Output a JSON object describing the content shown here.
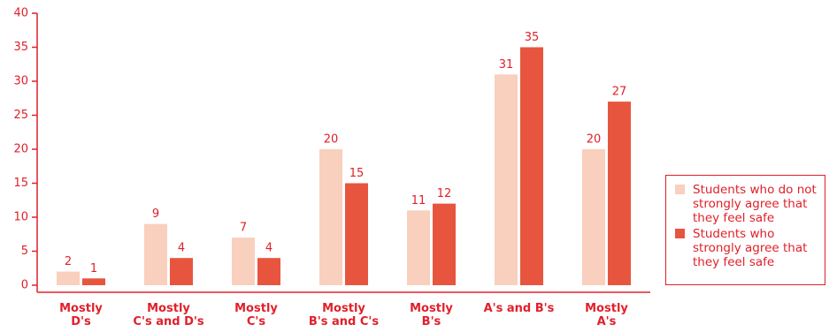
{
  "chart_data": {
    "type": "bar",
    "categories": [
      [
        "Mostly",
        "D's"
      ],
      [
        "Mostly",
        "C's and D's"
      ],
      [
        "Mostly",
        "C's"
      ],
      [
        "Mostly",
        "B's and C's"
      ],
      [
        "Mostly",
        "B's"
      ],
      [
        "A's and B's"
      ],
      [
        "Mostly",
        "A's"
      ]
    ],
    "series": [
      {
        "name": "Students who do not strongly agree that they feel safe",
        "color": "#f9cfbd",
        "values": [
          2,
          9,
          7,
          20,
          11,
          31,
          20
        ]
      },
      {
        "name": "Students who strongly agree that they feel safe",
        "color": "#e8553e",
        "values": [
          1,
          4,
          4,
          15,
          12,
          35,
          27
        ]
      }
    ],
    "ylim": [
      0,
      40
    ],
    "yticks": [
      0,
      5,
      10,
      15,
      20,
      25,
      30,
      35,
      40
    ],
    "legend": "right"
  }
}
